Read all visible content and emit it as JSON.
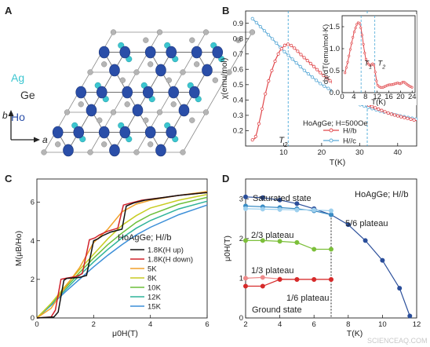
{
  "figure": {
    "watermark": "SCIENCEAQ.COM",
    "panels": {
      "A": {
        "label": "A",
        "atom_labels": {
          "ag": "Ag",
          "ge": "Ge",
          "ho": "Ho"
        },
        "axis_labels": {
          "b": "b",
          "a": "a"
        },
        "colors": {
          "ho": "#2a4ea8",
          "ag": "#3cc6d0",
          "ge": "#b5b5b5",
          "bond": "#707070"
        }
      },
      "B": {
        "label": "B",
        "T2_main": "T",
        "T2_main_sub": "2"
      },
      "C": {
        "label": "C"
      },
      "D": {
        "label": "D",
        "vline_T": 7
      }
    }
  },
  "chart_data": [
    {
      "panel": "B",
      "type": "line",
      "xlabel": "T(K)",
      "ylabel": "χ(emu/mol)",
      "xlim": [
        0,
        45
      ],
      "ylim": [
        0.1,
        0.98
      ],
      "xticks": [
        10,
        20,
        30,
        40
      ],
      "yticks": [
        0.2,
        0.3,
        0.4,
        0.5,
        0.6,
        0.7,
        0.8,
        0.9
      ],
      "legend_title": "HoAgGe; H=500Oe",
      "legend_position": "bottom-right",
      "vlines": [
        11.2,
        32
      ],
      "series": [
        {
          "name": "H//b",
          "color": "#e0464a",
          "x": [
            1.8,
            2.5,
            3,
            4,
            5,
            6,
            7,
            8,
            9,
            10,
            10.5,
            11,
            11.5,
            12,
            13,
            14,
            15,
            17,
            20,
            23,
            26,
            29,
            32,
            35,
            38,
            41,
            45
          ],
          "y": [
            0.14,
            0.15,
            0.19,
            0.3,
            0.42,
            0.52,
            0.6,
            0.67,
            0.72,
            0.75,
            0.76,
            0.765,
            0.76,
            0.755,
            0.735,
            0.71,
            0.685,
            0.64,
            0.57,
            0.51,
            0.46,
            0.41,
            0.37,
            0.34,
            0.31,
            0.29,
            0.265
          ]
        },
        {
          "name": "H//c",
          "color": "#5aa9d6",
          "x": [
            1.8,
            3,
            5,
            7,
            10,
            13,
            16,
            20,
            25,
            30,
            35,
            40,
            45
          ],
          "y": [
            0.93,
            0.9,
            0.85,
            0.8,
            0.72,
            0.65,
            0.58,
            0.5,
            0.43,
            0.37,
            0.33,
            0.3,
            0.275
          ]
        }
      ],
      "inset": {
        "type": "line",
        "xlabel": "T(K)",
        "ylabel": "dχ/dT(emu/mol·K)",
        "xlim": [
          0,
          25
        ],
        "ylim": [
          0,
          1.75
        ],
        "xticks": [
          0,
          4,
          8,
          12,
          16,
          20,
          24
        ],
        "yticks": [
          0.0,
          0.5,
          1.0,
          1.5
        ],
        "vlines": [
          6.5,
          11.2
        ],
        "annotations": [
          {
            "text": "T",
            "sub": "1",
            "x": 7.6,
            "y": 0.62
          },
          {
            "text": "T",
            "sub": "2",
            "x": 12.2,
            "y": 0.62
          }
        ],
        "series": [
          {
            "name": "",
            "color": "#e0464a",
            "x": [
              1,
              2,
              3,
              4,
              5,
              5.6,
              6,
              6.5,
              7,
              7.5,
              8,
              8.5,
              9,
              9.5,
              10,
              10.5,
              11,
              11.5,
              12,
              13,
              14,
              15,
              16,
              17,
              18,
              19,
              20,
              21,
              22,
              23,
              24
            ],
            "y": [
              0.45,
              0.72,
              1.05,
              1.35,
              1.55,
              1.6,
              1.58,
              1.45,
              1.25,
              1.0,
              0.8,
              0.7,
              0.65,
              0.62,
              0.63,
              0.66,
              0.62,
              0.4,
              0.18,
              0.12,
              0.12,
              0.15,
              0.18,
              0.18,
              0.2,
              0.22,
              0.2,
              0.25,
              0.2,
              0.15,
              0.12
            ]
          }
        ]
      }
    },
    {
      "panel": "C",
      "type": "line",
      "xlabel": "μ0H(T)",
      "ylabel": "M(μB/Ho)",
      "xlim": [
        0,
        6
      ],
      "ylim": [
        0,
        7.2
      ],
      "xticks": [
        0,
        2,
        4,
        6
      ],
      "yticks": [
        0,
        2,
        4,
        6
      ],
      "legend_title": "HoAgGe; H//b",
      "legend_position": "bottom-right",
      "series": [
        {
          "name": "1.8K(H up)",
          "color": "#111111",
          "x": [
            0,
            0.6,
            0.75,
            0.95,
            1.05,
            1.5,
            1.75,
            2.0,
            2.15,
            2.3,
            2.6,
            3.0,
            3.15,
            3.4,
            3.8,
            4.5,
            5.0,
            6.0
          ],
          "y": [
            0,
            0.05,
            0.3,
            1.95,
            2.05,
            2.1,
            2.2,
            4.0,
            4.1,
            4.25,
            4.45,
            4.6,
            5.8,
            5.95,
            6.1,
            6.25,
            6.35,
            6.5
          ]
        },
        {
          "name": "1.8K(H down)",
          "color": "#d0202a",
          "x": [
            0,
            0.5,
            0.65,
            0.85,
            1.0,
            1.4,
            1.6,
            1.85,
            2.05,
            2.2,
            2.5,
            2.85,
            3.05,
            3.3,
            3.7,
            4.5,
            5.0,
            6.0
          ],
          "y": [
            0,
            0.05,
            0.4,
            2.0,
            2.05,
            2.15,
            2.3,
            4.05,
            4.15,
            4.3,
            4.5,
            4.65,
            5.85,
            5.95,
            6.1,
            6.25,
            6.35,
            6.5
          ]
        },
        {
          "name": "5K",
          "color": "#f2a12a",
          "x": [
            0,
            0.5,
            1.0,
            1.5,
            2.0,
            2.5,
            3.0,
            3.5,
            4.0,
            5.0,
            6.0
          ],
          "y": [
            0,
            0.5,
            1.6,
            2.6,
            3.9,
            4.6,
            5.5,
            5.9,
            6.1,
            6.35,
            6.55
          ]
        },
        {
          "name": "8K",
          "color": "#c8cc22",
          "x": [
            0,
            0.5,
            1.0,
            1.5,
            2.0,
            2.5,
            3.0,
            3.5,
            4.0,
            5.0,
            6.0
          ],
          "y": [
            0,
            0.75,
            1.65,
            2.5,
            3.3,
            4.1,
            4.8,
            5.3,
            5.7,
            6.1,
            6.4
          ]
        },
        {
          "name": "10K",
          "color": "#6cbf3a",
          "x": [
            0,
            0.5,
            1.0,
            1.5,
            2.0,
            2.5,
            3.0,
            3.5,
            4.0,
            5.0,
            6.0
          ],
          "y": [
            0,
            0.75,
            1.55,
            2.35,
            3.1,
            3.8,
            4.4,
            4.95,
            5.35,
            5.9,
            6.25
          ]
        },
        {
          "name": "12K",
          "color": "#2fb39a",
          "x": [
            0,
            0.5,
            1.0,
            1.5,
            2.0,
            2.5,
            3.0,
            3.5,
            4.0,
            5.0,
            6.0
          ],
          "y": [
            0,
            0.7,
            1.45,
            2.2,
            2.9,
            3.55,
            4.15,
            4.65,
            5.05,
            5.65,
            6.05
          ]
        },
        {
          "name": "15K",
          "color": "#3c8fd8",
          "x": [
            0,
            0.5,
            1.0,
            1.5,
            2.0,
            2.5,
            3.0,
            3.5,
            4.0,
            5.0,
            6.0
          ],
          "y": [
            0,
            0.65,
            1.35,
            2.0,
            2.65,
            3.25,
            3.8,
            4.3,
            4.7,
            5.35,
            5.85
          ]
        }
      ]
    },
    {
      "panel": "D",
      "type": "line",
      "xlabel": "T(K)",
      "ylabel": "μ0H(T)",
      "xlim": [
        2,
        12
      ],
      "ylim": [
        0,
        3.5
      ],
      "xticks": [
        2,
        4,
        6,
        8,
        10,
        12
      ],
      "yticks": [
        0,
        1,
        2,
        3
      ],
      "header": "HoAgGe; H//b",
      "series": [
        {
          "name": "Saturated state",
          "color": "#2a4e9a",
          "x": [
            2,
            3,
            4,
            5,
            6,
            7,
            8,
            9,
            10,
            11,
            11.6
          ],
          "y": [
            3.05,
            3.03,
            2.97,
            2.88,
            2.75,
            2.6,
            2.35,
            1.95,
            1.45,
            0.75,
            0.05
          ]
        },
        {
          "name": "5/6 plateau",
          "color": "#3a8cc4",
          "x": [
            2,
            3,
            4,
            5,
            6,
            7
          ],
          "y": [
            2.82,
            2.8,
            2.78,
            2.75,
            2.7,
            2.6
          ]
        },
        {
          "name": "2/3 plateau",
          "color": "#9ed0ee",
          "x": [
            2,
            3,
            4,
            5,
            6,
            7
          ],
          "y": [
            2.75,
            2.74,
            2.73,
            2.72,
            2.72,
            2.7
          ]
        },
        {
          "name": "1/3 plateau",
          "color": "#7cbf3a",
          "x": [
            2,
            3,
            4,
            5,
            6,
            7
          ],
          "y": [
            1.95,
            1.95,
            1.93,
            1.9,
            1.73,
            1.73
          ]
        },
        {
          "name": "1/6 plateau",
          "color": "#ee8a8a",
          "x": [
            2,
            3,
            4,
            5,
            6,
            7
          ],
          "y": [
            1.0,
            1.02,
            0.98,
            0.97,
            0.97,
            0.97
          ]
        },
        {
          "name": "Ground state",
          "color": "#d62a2a",
          "x": [
            2,
            3,
            4,
            5,
            6,
            7
          ],
          "y": [
            0.8,
            0.8,
            0.97,
            0.97,
            0.97,
            0.97
          ]
        }
      ]
    }
  ]
}
